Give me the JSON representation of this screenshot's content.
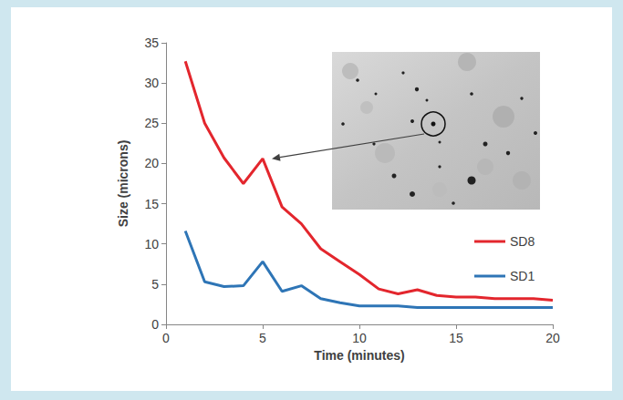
{
  "chart_data": {
    "type": "line",
    "x_label": "Time (minutes)",
    "y_label": "Size (microns)",
    "x": [
      1,
      2,
      3,
      4,
      5,
      6,
      7,
      8,
      9,
      10,
      11,
      12,
      13,
      14,
      15,
      16,
      17,
      18,
      19,
      20
    ],
    "series": [
      {
        "name": "SD8",
        "color": "#e3262d",
        "values": [
          32.7,
          25.0,
          20.7,
          17.5,
          20.6,
          14.6,
          12.5,
          9.4,
          7.8,
          6.2,
          4.4,
          3.8,
          4.3,
          3.6,
          3.4,
          3.4,
          3.2,
          3.2,
          3.2,
          3.0
        ]
      },
      {
        "name": "SD1",
        "color": "#2e75b6",
        "values": [
          11.6,
          5.3,
          4.7,
          4.8,
          7.8,
          4.1,
          4.8,
          3.2,
          2.7,
          2.3,
          2.3,
          2.3,
          2.1,
          2.1,
          2.1,
          2.1,
          2.1,
          2.1,
          2.1,
          2.1
        ]
      }
    ],
    "xlim": [
      0,
      20
    ],
    "xticks": [
      0,
      5,
      10,
      15,
      20
    ],
    "ylim": [
      0,
      35
    ],
    "yticks": [
      0,
      5,
      10,
      15,
      20,
      25,
      30,
      35
    ],
    "grid": false,
    "legend": "right"
  }
}
